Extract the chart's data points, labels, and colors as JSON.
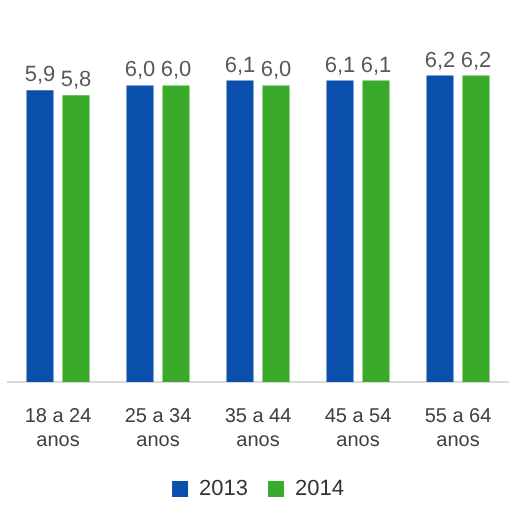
{
  "chart_data": {
    "type": "bar",
    "categories": [
      "18 a 24 anos",
      "25 a 34 anos",
      "35 a 44 anos",
      "45 a 54 anos",
      "55 a 64 anos"
    ],
    "series": [
      {
        "name": "2013",
        "color": "#0b4fad",
        "values": [
          5.9,
          6.0,
          6.1,
          6.1,
          6.2
        ],
        "value_labels": [
          "5,9",
          "6,0",
          "6,1",
          "6,1",
          "6,2"
        ]
      },
      {
        "name": "2014",
        "color": "#3aaa2a",
        "values": [
          5.8,
          6.0,
          6.0,
          6.1,
          6.2
        ],
        "value_labels": [
          "5,8",
          "6,0",
          "6,0",
          "6,1",
          "6,2"
        ]
      }
    ],
    "tick_labels": "x",
    "grid": false,
    "legend": "bottom"
  }
}
